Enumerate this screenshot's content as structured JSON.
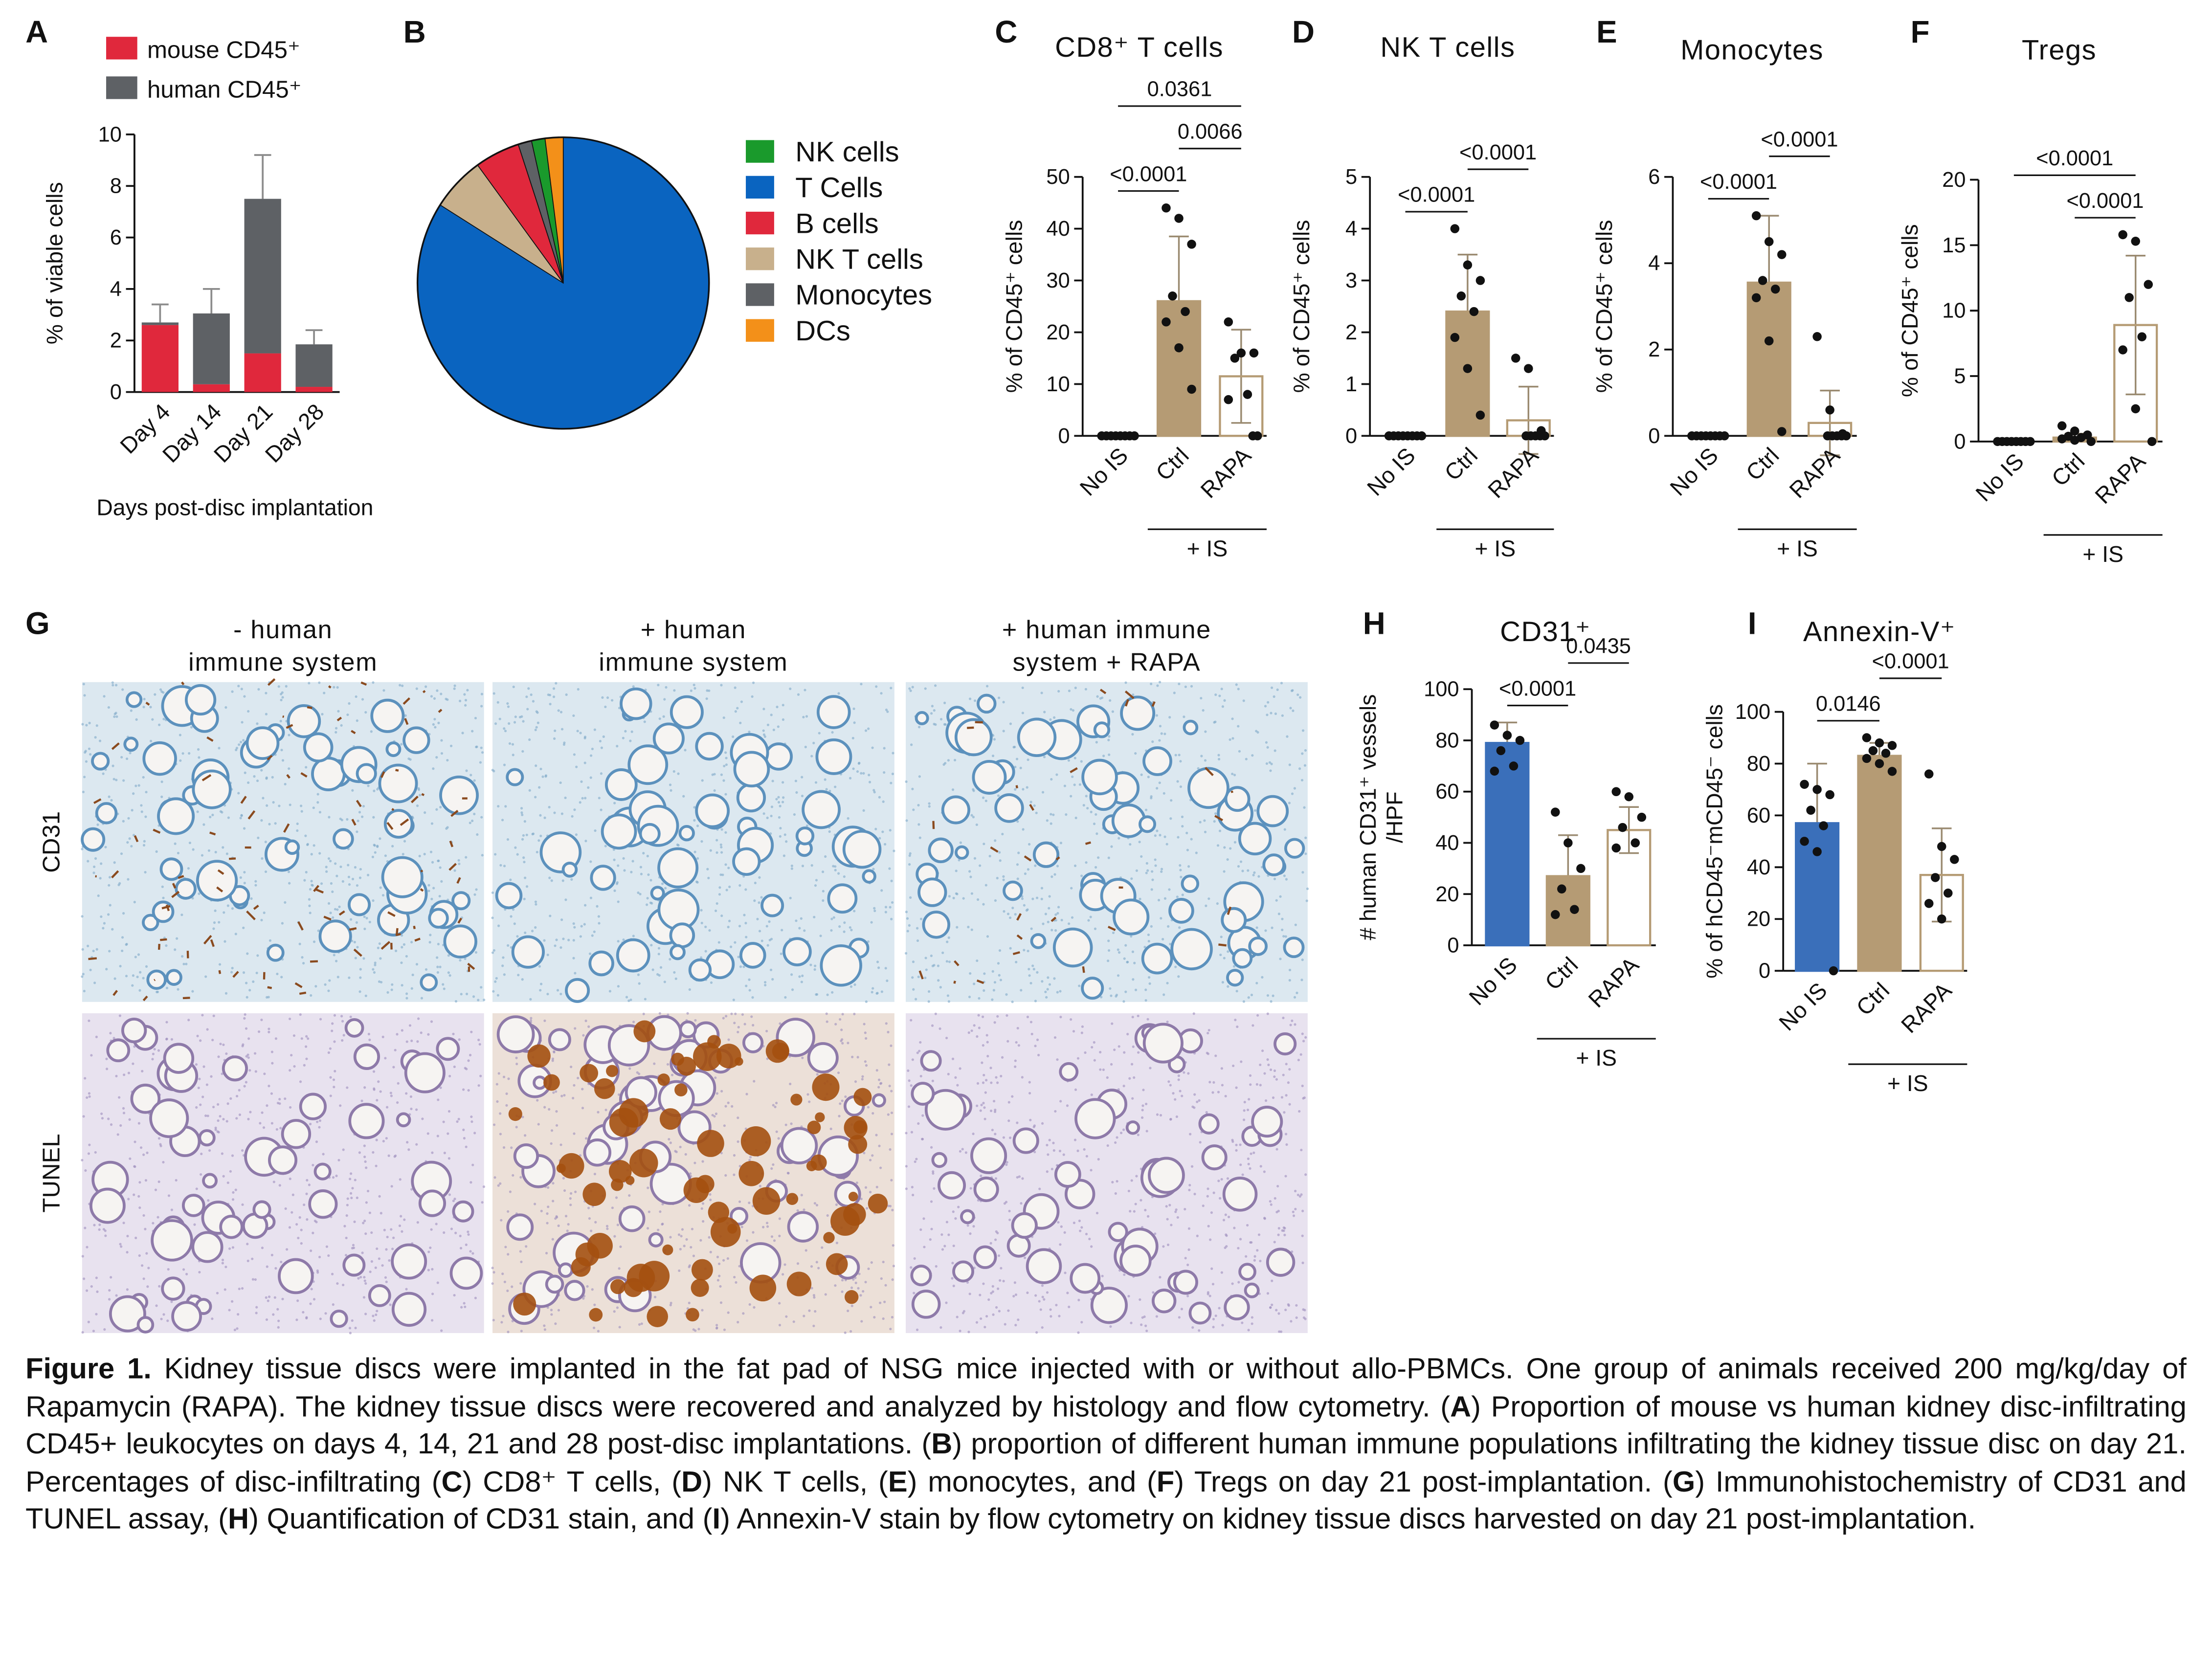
{
  "chart_data": [
    {
      "type": "stacked-bar",
      "panel": "A",
      "categories": [
        "Day 4",
        "Day 14",
        "Day 21",
        "Day 28"
      ],
      "series": [
        {
          "name": "mouse CD45⁺",
          "color": "#e0283c",
          "values": [
            2.6,
            0.3,
            1.5,
            0.2
          ]
        },
        {
          "name": "human CD45⁺",
          "color": "#5e6165",
          "values": [
            0.1,
            2.75,
            6.0,
            1.65
          ],
          "errors": [
            0.7,
            0.95,
            1.7,
            0.55
          ]
        }
      ],
      "ylabel": "% of viable cells",
      "xlabel": "Days post-disc implantation",
      "ylim": [
        0,
        10
      ],
      "yticks": [
        0,
        2,
        4,
        6,
        8,
        10
      ]
    },
    {
      "type": "pie",
      "panel": "B",
      "labels": [
        "NK cells",
        "T Cells",
        "B cells",
        "NK T cells",
        "Monocytes",
        "DCs"
      ],
      "values": [
        1.5,
        84,
        5,
        6,
        1.5,
        2
      ],
      "colors": [
        "#1a9a2c",
        "#0a64c0",
        "#e0283c",
        "#c8b08c",
        "#5e6165",
        "#f39019"
      ]
    },
    {
      "type": "bar-dot",
      "panel": "C",
      "title": "CD8⁺ T cells",
      "ylabel": "% of CD45⁺ cells",
      "categories": [
        "No IS",
        "Ctrl",
        "RAPA"
      ],
      "group_label": "+ IS",
      "values": [
        0,
        26,
        11.5
      ],
      "errors": [
        0,
        12.5,
        9
      ],
      "points": [
        [
          0,
          0,
          0,
          0,
          0,
          0,
          0,
          0
        ],
        [
          44,
          42,
          37,
          27,
          24,
          22,
          17,
          9
        ],
        [
          22,
          16,
          16,
          15,
          8,
          7,
          0,
          0
        ]
      ],
      "fills": [
        "#b59b74",
        "#b59b74",
        "#ffffff"
      ],
      "edge": "#b59b74",
      "ylim": [
        0,
        50
      ],
      "yticks": [
        0,
        10,
        20,
        30,
        40,
        50
      ],
      "comparisons": [
        {
          "between": [
            "No IS",
            "Ctrl"
          ],
          "label": "<0.0001"
        },
        {
          "between": [
            "Ctrl",
            "RAPA"
          ],
          "label": "0.0066"
        },
        {
          "between": [
            "No IS",
            "RAPA"
          ],
          "label": "0.0361"
        }
      ]
    },
    {
      "type": "bar-dot",
      "panel": "D",
      "title": "NK T cells",
      "ylabel": "% of CD45⁺ cells",
      "categories": [
        "No IS",
        "Ctrl",
        "RAPA"
      ],
      "group_label": "+ IS",
      "values": [
        0,
        2.4,
        0.3
      ],
      "errors": [
        0,
        1.1,
        0.65
      ],
      "points": [
        [
          0,
          0,
          0,
          0,
          0,
          0,
          0,
          0
        ],
        [
          4.0,
          3.3,
          3.0,
          2.7,
          2.4,
          1.9,
          1.3,
          0.4
        ],
        [
          1.5,
          1.3,
          0.1,
          0,
          0,
          0,
          0,
          0
        ]
      ],
      "fills": [
        "#b59b74",
        "#b59b74",
        "#ffffff"
      ],
      "edge": "#b59b74",
      "ylim": [
        0,
        5
      ],
      "yticks": [
        0,
        1,
        2,
        3,
        4,
        5
      ],
      "comparisons": [
        {
          "between": [
            "No IS",
            "Ctrl"
          ],
          "label": "<0.0001"
        },
        {
          "between": [
            "Ctrl",
            "RAPA"
          ],
          "label": "<0.0001"
        }
      ]
    },
    {
      "type": "bar-dot",
      "panel": "E",
      "title": "Monocytes",
      "ylabel": "% of CD45⁺ cells",
      "categories": [
        "No IS",
        "Ctrl",
        "RAPA"
      ],
      "group_label": "+ IS",
      "values": [
        0,
        3.55,
        0.3
      ],
      "errors": [
        0,
        1.55,
        0.75
      ],
      "points": [
        [
          0,
          0,
          0,
          0,
          0,
          0,
          0,
          0
        ],
        [
          5.1,
          4.5,
          4.2,
          3.6,
          3.4,
          3.2,
          2.2,
          0.1
        ],
        [
          2.3,
          0.6,
          0.05,
          0,
          0,
          0,
          0,
          0
        ]
      ],
      "fills": [
        "#b59b74",
        "#b59b74",
        "#ffffff"
      ],
      "edge": "#b59b74",
      "ylim": [
        0,
        6
      ],
      "yticks": [
        0,
        2,
        4,
        6
      ],
      "comparisons": [
        {
          "between": [
            "No IS",
            "Ctrl"
          ],
          "label": "<0.0001"
        },
        {
          "between": [
            "Ctrl",
            "RAPA"
          ],
          "label": "<0.0001"
        }
      ]
    },
    {
      "type": "bar-dot",
      "panel": "F",
      "title": "Tregs",
      "ylabel": "% of CD45⁺ cells",
      "categories": [
        "No IS",
        "Ctrl",
        "RAPA"
      ],
      "group_label": "+ IS",
      "values": [
        0,
        0.3,
        8.9
      ],
      "errors": [
        0,
        0.3,
        5.3
      ],
      "points": [
        [
          0,
          0,
          0,
          0,
          0,
          0,
          0,
          0
        ],
        [
          1.2,
          0.8,
          0.5,
          0.4,
          0.3,
          0.2,
          0.1,
          0
        ],
        [
          15.8,
          15.3,
          12,
          11,
          8,
          7,
          2.5,
          0
        ]
      ],
      "fills": [
        "#b59b74",
        "#b59b74",
        "#ffffff"
      ],
      "edge": "#b59b74",
      "ylim": [
        0,
        20
      ],
      "yticks": [
        0,
        5,
        10,
        15,
        20
      ],
      "comparisons": [
        {
          "between": [
            "Ctrl",
            "RAPA"
          ],
          "label": "<0.0001"
        },
        {
          "between": [
            "No IS",
            "RAPA"
          ],
          "label": "<0.0001"
        }
      ]
    },
    {
      "type": "bar-dot",
      "panel": "H",
      "title": "CD31⁺",
      "ylabel": [
        "# human CD31⁺ vessels",
        "/HPF"
      ],
      "categories": [
        "No IS",
        "Ctrl",
        "RAPA"
      ],
      "group_label": "+ IS",
      "values": [
        79,
        27,
        45
      ],
      "errors": [
        8,
        16,
        9
      ],
      "points": [
        [
          86,
          82,
          80,
          76,
          70,
          68
        ],
        [
          52,
          40,
          30,
          22,
          14,
          12
        ],
        [
          60,
          58,
          50,
          46,
          40,
          38
        ]
      ],
      "fills": [
        "#3a6fba",
        "#b59b74",
        "#ffffff"
      ],
      "edge": "#b59b74",
      "ylim": [
        0,
        100
      ],
      "yticks": [
        0,
        20,
        40,
        60,
        80,
        100
      ],
      "comparisons": [
        {
          "between": [
            "No IS",
            "Ctrl"
          ],
          "label": "<0.0001"
        },
        {
          "between": [
            "Ctrl",
            "RAPA"
          ],
          "label": "0.0435"
        }
      ]
    },
    {
      "type": "bar-dot",
      "panel": "I",
      "title": "Annexin-V⁺",
      "ylabel": "% of hCD45⁻mCD45⁻ cells",
      "categories": [
        "No IS",
        "Ctrl",
        "RAPA"
      ],
      "group_label": "+ IS",
      "values": [
        57,
        83,
        37
      ],
      "errors": [
        23,
        5,
        18
      ],
      "points": [
        [
          72,
          70,
          68,
          62,
          56,
          50,
          46,
          0
        ],
        [
          90,
          88,
          87,
          85,
          84,
          82,
          80,
          77
        ],
        [
          76,
          48,
          43,
          36,
          30,
          26,
          20
        ]
      ],
      "fills": [
        "#3a6fba",
        "#b59b74",
        "#ffffff"
      ],
      "edge": "#b59b74",
      "ylim": [
        0,
        100
      ],
      "yticks": [
        0,
        20,
        40,
        60,
        80,
        100
      ],
      "comparisons": [
        {
          "between": [
            "No IS",
            "Ctrl"
          ],
          "label": "0.0146"
        },
        {
          "between": [
            "Ctrl",
            "RAPA"
          ],
          "label": "<0.0001"
        }
      ]
    }
  ],
  "histology": {
    "panel": "G",
    "columns": [
      [
        "- human",
        "immune system"
      ],
      [
        "+ human",
        "immune system"
      ],
      [
        "+ human immune",
        "system + RAPA"
      ]
    ],
    "rows": [
      "CD31",
      "TUNEL"
    ]
  },
  "caption": [
    {
      "text": "Figure 1.",
      "bold": true
    },
    {
      "text": " Kidney tissue discs were implanted in the fat pad of NSG mice injected with or without allo-PBMCs. One group of animals received 200 mg/kg/day of Rapamycin (RAPA). The kidney tissue discs were recovered and analyzed by histology and flow cytometry. (",
      "bold": false
    },
    {
      "text": "A",
      "bold": true
    },
    {
      "text": ") Proportion of mouse vs human kidney disc-infiltrating CD45+ leukocytes on days 4, 14, 21 and 28 post-disc implantations. (",
      "bold": false
    },
    {
      "text": "B",
      "bold": true
    },
    {
      "text": ") proportion of different human immune populations infiltrating the kidney tissue disc on day 21. Percentages of disc-infiltrating (",
      "bold": false
    },
    {
      "text": "C",
      "bold": true
    },
    {
      "text": ") CD8⁺ T cells, (",
      "bold": false
    },
    {
      "text": "D",
      "bold": true
    },
    {
      "text": ") NK T cells, (",
      "bold": false
    },
    {
      "text": "E",
      "bold": true
    },
    {
      "text": ") monocytes, and (",
      "bold": false
    },
    {
      "text": "F",
      "bold": true
    },
    {
      "text": ") Tregs on day 21 post-implantation. (",
      "bold": false
    },
    {
      "text": "G",
      "bold": true
    },
    {
      "text": ") Immunohistochemistry of CD31 and TUNEL assay, (",
      "bold": false
    },
    {
      "text": "H",
      "bold": true
    },
    {
      "text": ") Quantification of CD31 stain, and (",
      "bold": false
    },
    {
      "text": "I",
      "bold": true
    },
    {
      "text": ") Annexin-V stain by flow cytometry on kidney tissue discs harvested on day 21 post-implantation.",
      "bold": false
    }
  ]
}
